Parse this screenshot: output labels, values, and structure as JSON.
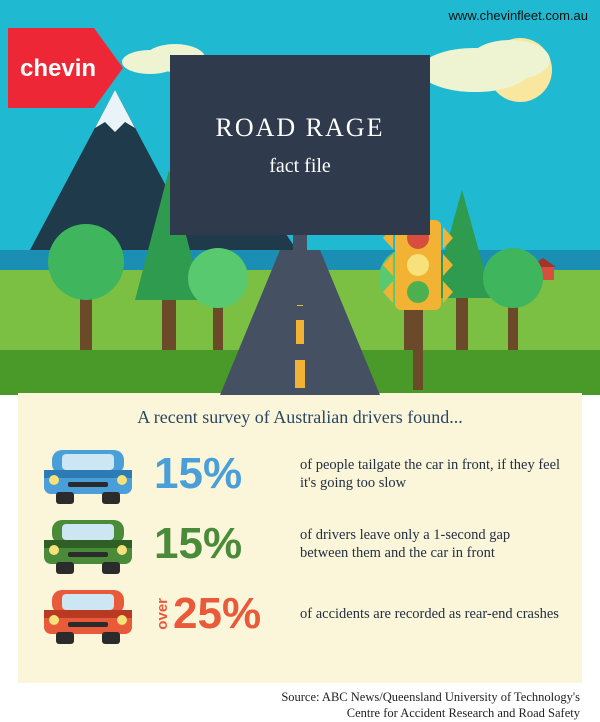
{
  "url_text": "www.chevinfleet.com.au",
  "logo": {
    "text": "chevin",
    "bg": "#ee2737",
    "text_color": "#ffffff"
  },
  "sign": {
    "title": "ROAD RAGE",
    "subtitle": "fact file",
    "bg": "#2f3b4c"
  },
  "scene": {
    "sky_color": "#1fb9d1",
    "grass_color": "#7bc043",
    "grass_dark": "#4a9a2a",
    "mountain_dark": "#1f3a4a",
    "mountain_peak": "#e8f4f8",
    "sun_color": "#f9e79f",
    "cloud_color": "#eef3d2",
    "water": "#1a8fb3",
    "road_color": "#455063",
    "road_mark": "#f2b233",
    "tree_green1": "#2e9b4f",
    "tree_green2": "#3fb65d",
    "tree_green3": "#58c96f",
    "tree_trunk": "#6b4a2a",
    "house_wall": "#d74e3e",
    "house_roof": "#a33429",
    "traffic_body": "#f2b233",
    "traffic_pole": "#6b4a2a",
    "light_red": "#d74e3e",
    "light_yellow": "#f7e17a",
    "light_green": "#4caf50"
  },
  "panel": {
    "bg": "#fbf5da",
    "lead": "A recent survey of Australian drivers found...",
    "rows": [
      {
        "car_color": "#4a9fd8",
        "car_dark": "#2d7bb5",
        "prefix": "",
        "pct": "15%",
        "pct_color": "#4a9fd8",
        "desc": "of people tailgate the car in front, if they feel it's going too slow"
      },
      {
        "car_color": "#4a8b3a",
        "car_dark": "#2f5f24",
        "prefix": "",
        "pct": "15%",
        "pct_color": "#4a8b3a",
        "desc": "of drivers leave only a 1-second gap between them and the car in front"
      },
      {
        "car_color": "#e85a3a",
        "car_dark": "#b83a22",
        "prefix": "over",
        "pct": "25%",
        "pct_color": "#e85a3a",
        "desc": "of accidents are recorded as rear-end crashes"
      }
    ]
  },
  "source": "Source: ABC News/Queensland University of Technology's\nCentre for Accident Research and Road Safety"
}
